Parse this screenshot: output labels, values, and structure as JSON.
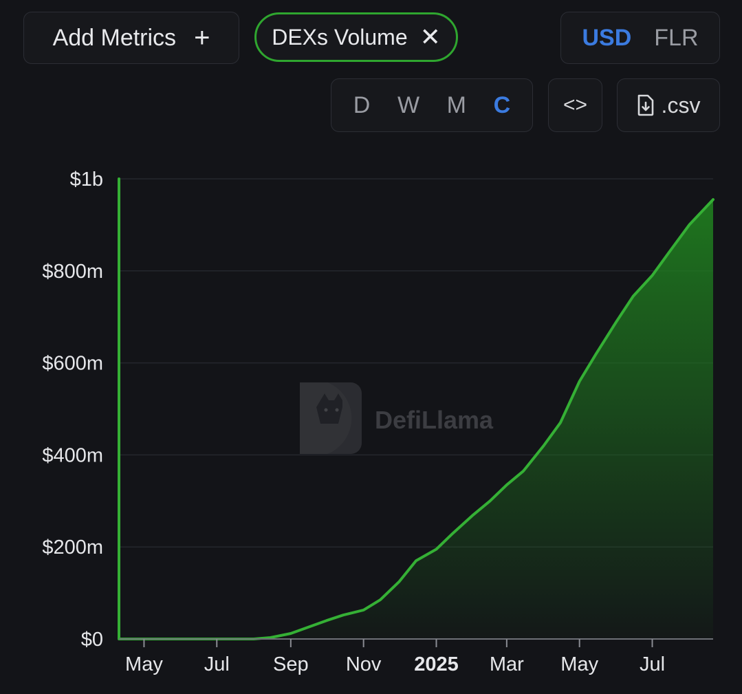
{
  "toolbar": {
    "add_metrics_label": "Add Metrics",
    "add_icon": "plus-icon",
    "metric_chip_label": "DEXs Volume",
    "remove_icon": "close-icon",
    "currency_options": [
      "USD",
      "FLR"
    ],
    "currency_selected": "USD",
    "period_options": [
      "D",
      "W",
      "M",
      "C"
    ],
    "period_selected": "C",
    "embed_icon": "code-icon",
    "csv_icon": "file-download-icon",
    "csv_label": ".csv"
  },
  "watermark": {
    "text": "DefiLlama",
    "icon": "llama-logo-icon"
  },
  "colors": {
    "line": "#35b035",
    "fill_top": "#1f7a1f",
    "accent": "#3b7be0",
    "grid": "#25272d",
    "background": "#131418"
  },
  "chart_data": {
    "type": "area",
    "title": "",
    "xlabel": "",
    "ylabel": "",
    "ylim": [
      0,
      1000000000
    ],
    "y_ticks": [
      0,
      200000000,
      400000000,
      600000000,
      800000000,
      1000000000
    ],
    "y_tick_labels": [
      "$0",
      "$200m",
      "$400m",
      "$600m",
      "$800m",
      "$1b"
    ],
    "x_ticks": [
      "2024-05-01",
      "2024-07-01",
      "2024-09-01",
      "2024-11-01",
      "2025-01-01",
      "2025-03-01",
      "2025-05-01",
      "2025-07-01"
    ],
    "x_tick_labels": [
      "May",
      "Jul",
      "Sep",
      "Nov",
      "2025",
      "Mar",
      "May",
      "Jul"
    ],
    "x_tick_bold": [
      false,
      false,
      false,
      false,
      true,
      false,
      false,
      false
    ],
    "xlim": [
      "2024-04-10",
      "2025-08-21"
    ],
    "grid": true,
    "legend": "none",
    "series": [
      {
        "name": "DEXs Volume",
        "x": [
          "2024-04-10",
          "2024-05-01",
          "2024-06-01",
          "2024-07-01",
          "2024-08-01",
          "2024-08-15",
          "2024-09-01",
          "2024-09-15",
          "2024-10-01",
          "2024-10-15",
          "2024-11-01",
          "2024-11-15",
          "2024-12-01",
          "2024-12-15",
          "2025-01-01",
          "2025-01-15",
          "2025-02-01",
          "2025-02-15",
          "2025-03-01",
          "2025-03-15",
          "2025-04-01",
          "2025-04-15",
          "2025-05-01",
          "2025-05-15",
          "2025-06-01",
          "2025-06-15",
          "2025-07-01",
          "2025-07-15",
          "2025-08-01",
          "2025-08-21"
        ],
        "y": [
          0,
          0,
          0,
          0,
          0,
          3000000,
          12000000,
          25000000,
          40000000,
          52000000,
          63000000,
          85000000,
          125000000,
          170000000,
          195000000,
          230000000,
          270000000,
          300000000,
          335000000,
          365000000,
          420000000,
          470000000,
          560000000,
          620000000,
          690000000,
          745000000,
          790000000,
          840000000,
          900000000,
          955000000
        ]
      }
    ]
  }
}
